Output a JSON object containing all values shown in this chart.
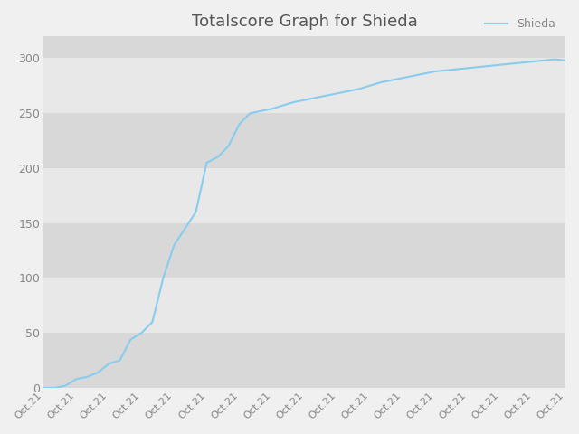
{
  "title": "Totalscore Graph for Shieda",
  "legend_label": "Shieda",
  "line_color": "#88ccee",
  "background_color": "#f0f0f0",
  "plot_bg_color": "#e8e8e8",
  "band_color_light": "#e8e8e8",
  "band_color_dark": "#d8d8d8",
  "title_color": "#555555",
  "tick_color": "#888888",
  "x_values": [
    0,
    1,
    2,
    3,
    4,
    5,
    6,
    7,
    8,
    9,
    10,
    11,
    12,
    13,
    14,
    15,
    16,
    17,
    18,
    19,
    20,
    21,
    22,
    23,
    24,
    25,
    26,
    27,
    28,
    29,
    30,
    31,
    32,
    33,
    34,
    35,
    36,
    37,
    38,
    39,
    40,
    41,
    42,
    43,
    44,
    45,
    46,
    47,
    48
  ],
  "y_values": [
    0,
    0,
    2,
    8,
    10,
    14,
    22,
    25,
    44,
    50,
    60,
    100,
    130,
    145,
    160,
    205,
    210,
    220,
    240,
    250,
    252,
    254,
    257,
    260,
    262,
    264,
    266,
    268,
    270,
    272,
    275,
    278,
    280,
    282,
    284,
    286,
    288,
    289,
    290,
    291,
    292,
    293,
    294,
    295,
    296,
    297,
    298,
    299,
    298
  ],
  "ylim": [
    0,
    320
  ],
  "yticks": [
    0,
    50,
    100,
    150,
    200,
    250,
    300
  ],
  "num_xticks": 17,
  "figsize": [
    6.4,
    4.8
  ],
  "dpi": 100,
  "title_fontsize": 13,
  "tick_fontsize": 8,
  "ytick_fontsize": 9,
  "line_width": 1.5
}
